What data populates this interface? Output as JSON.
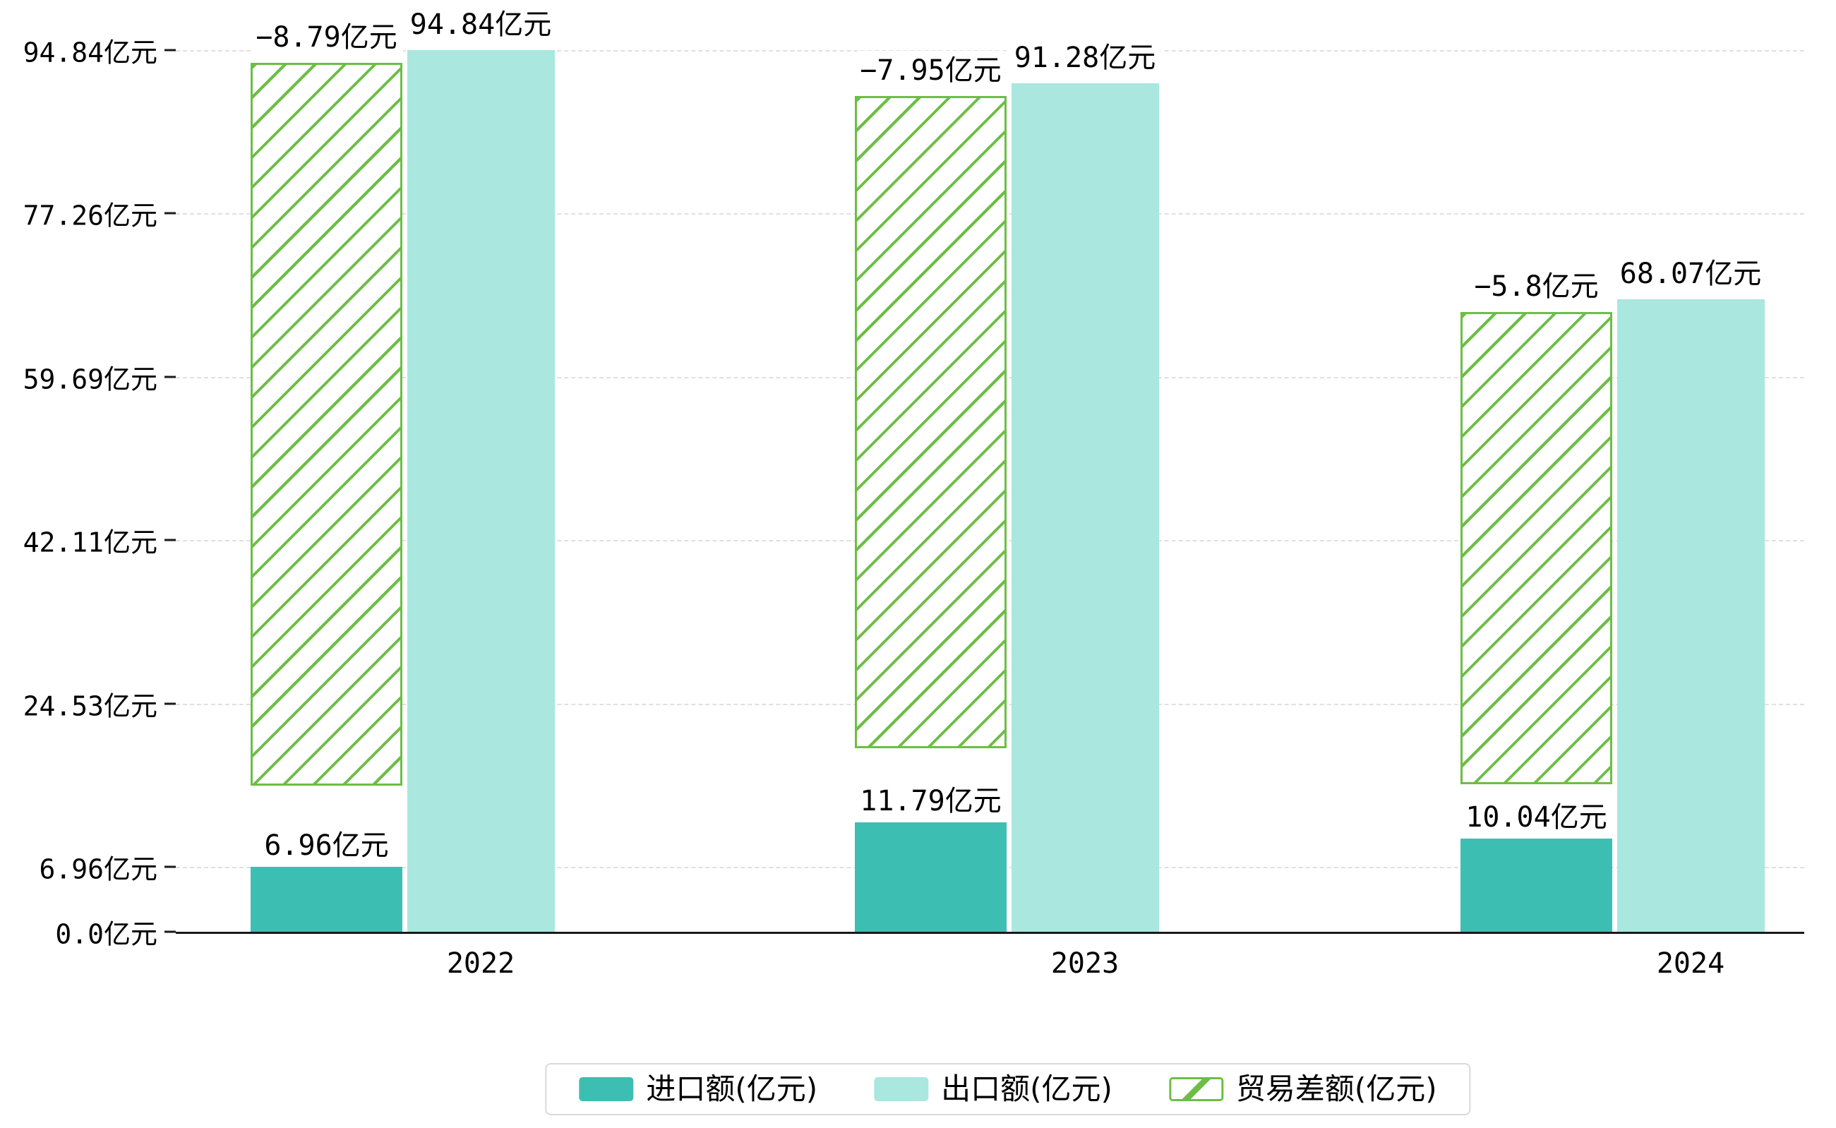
{
  "chart_data": {
    "type": "bar",
    "title": "",
    "categories": [
      "2022",
      "2023",
      "2024"
    ],
    "series": [
      {
        "key": "import",
        "name": "进口额(亿元)",
        "values": [
          6.96,
          11.79,
          10.04
        ],
        "labels": [
          "6.96亿元",
          "11.79亿元",
          "10.04亿元"
        ],
        "color": "#3CBEB2",
        "style": "solid"
      },
      {
        "key": "export",
        "name": "出口额(亿元)",
        "values": [
          94.84,
          91.28,
          68.07
        ],
        "labels": [
          "94.84亿元",
          "91.28亿元",
          "68.07亿元"
        ],
        "color": "#A9E7DF",
        "style": "solid"
      },
      {
        "key": "balance",
        "name": "贸易差额(亿元)",
        "values": [
          -8.79,
          -7.95,
          -5.8
        ],
        "labels": [
          "−8.79亿元",
          "−7.95亿元",
          "−5.8亿元"
        ],
        "color": "#6CBE45",
        "style": "hatched"
      }
    ],
    "y_axis": {
      "unit": "亿元",
      "min": 0,
      "max": 94.84,
      "ticks": [
        {
          "value": 0,
          "label": "0.0亿元"
        },
        {
          "value": 6.96,
          "label": "6.96亿元"
        },
        {
          "value": 24.53,
          "label": "24.53亿元"
        },
        {
          "value": 42.11,
          "label": "42.11亿元"
        },
        {
          "value": 59.69,
          "label": "59.69亿元"
        },
        {
          "value": 77.26,
          "label": "77.26亿元"
        },
        {
          "value": 94.84,
          "label": "94.84亿元"
        }
      ]
    },
    "grid": "dashed-horizontal",
    "legend_position": "bottom",
    "legend": [
      "进口额(亿元)",
      "出口额(亿元)",
      "贸易差额(亿元)"
    ]
  },
  "colors": {
    "background": "#FFFFFF",
    "import_bar": "#3CBEB2",
    "export_bar": "#A9E7DF",
    "balance_hatch": "#6CBE45",
    "gridline": "#E0E0E0",
    "axis": "#1A1A1A",
    "text": "#000000",
    "legend_border": "#D9D9D9"
  }
}
